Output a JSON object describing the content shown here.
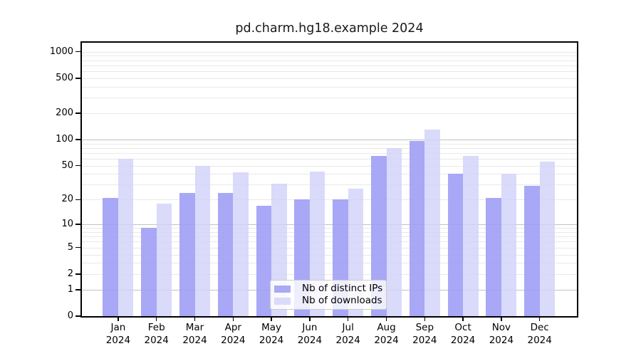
{
  "chart_data": {
    "type": "bar",
    "title": "pd.charm.hg18.example 2024",
    "categories": [
      "Jan 2024",
      "Feb 2024",
      "Mar 2024",
      "Apr 2024",
      "May 2024",
      "Jun 2024",
      "Jul 2024",
      "Aug 2024",
      "Sep 2024",
      "Oct 2024",
      "Nov 2024",
      "Dec 2024"
    ],
    "series": [
      {
        "name": "Nb of distinct IPs",
        "color": "#a9a9f6",
        "values": [
          21,
          9,
          24,
          24,
          17,
          20,
          20,
          65,
          97,
          40,
          21,
          29
        ]
      },
      {
        "name": "Nb of downloads",
        "color": "#dadafa",
        "values": [
          60,
          18,
          50,
          42,
          31,
          43,
          27,
          80,
          130,
          65,
          40,
          56
        ]
      }
    ],
    "xlabel": "",
    "ylabel": "",
    "yscale": "log10(1+y)",
    "ylim": [
      0,
      1340
    ],
    "yticks": {
      "values": [
        0,
        1,
        2,
        5,
        10,
        20,
        50,
        100,
        200,
        500,
        1000
      ],
      "labels": [
        "0",
        "1",
        "2",
        "5",
        "10",
        "20",
        "50",
        "100",
        "200",
        "500",
        "1000"
      ]
    },
    "grid": {
      "emphasized_values": [
        1,
        10,
        100
      ],
      "minor_values": [
        2,
        3,
        4,
        5,
        6,
        7,
        8,
        9,
        20,
        30,
        40,
        50,
        60,
        70,
        80,
        90,
        200,
        300,
        400,
        500,
        600,
        700,
        800,
        900,
        1000
      ]
    },
    "legend": {
      "position": "lower center inside axes",
      "entries": [
        "Nb of distinct IPs",
        "Nb of downloads"
      ]
    }
  }
}
